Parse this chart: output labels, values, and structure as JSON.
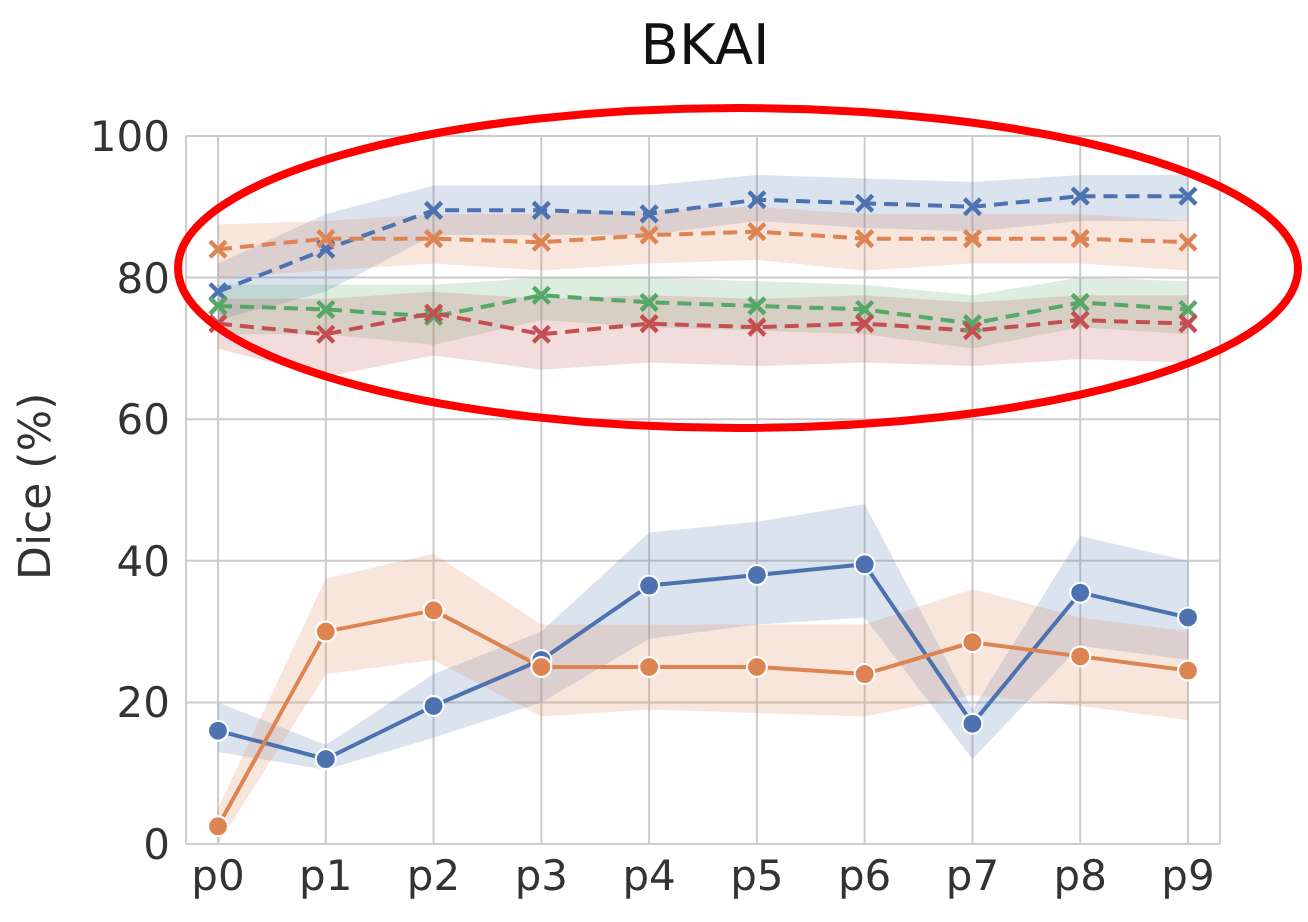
{
  "chart_data": {
    "type": "line",
    "title": "BKAI",
    "ylabel": "Dice (%)",
    "categories": [
      "p0",
      "p1",
      "p2",
      "p3",
      "p4",
      "p5",
      "p6",
      "p7",
      "p8",
      "p9"
    ],
    "ylim": [
      0,
      100
    ],
    "yticks": [
      0,
      20,
      40,
      60,
      80,
      100
    ],
    "grid": true,
    "legend": false,
    "series": [
      {
        "color": "#4c72b0",
        "marker": "circle",
        "line_style": "solid",
        "values": [
          16,
          12,
          19.5,
          26,
          36.5,
          38,
          39.5,
          17,
          35.5,
          32
        ],
        "lower": [
          13,
          10.5,
          15,
          20,
          29,
          31,
          32,
          12,
          28,
          26
        ],
        "upper": [
          20,
          14,
          24,
          30,
          44,
          45.5,
          48,
          19,
          43.5,
          40
        ]
      },
      {
        "color": "#dd8452",
        "marker": "circle",
        "line_style": "solid",
        "values": [
          2.5,
          30,
          33,
          25,
          25,
          25,
          24,
          28.5,
          26.5,
          24.5
        ],
        "lower": [
          0,
          24,
          26,
          18,
          19,
          18.5,
          18,
          21,
          19.5,
          17.5
        ],
        "upper": [
          5,
          37.5,
          41,
          31,
          31,
          31,
          31,
          36,
          32,
          30
        ]
      },
      {
        "color": "#4c72b0",
        "marker": "cross",
        "line_style": "dashed",
        "values": [
          78,
          84,
          89.5,
          89.5,
          89,
          91,
          90.5,
          90,
          91.5,
          91.5
        ],
        "lower": [
          74,
          78,
          86,
          86,
          86,
          88,
          87,
          86.5,
          88,
          88
        ],
        "upper": [
          82,
          89,
          93,
          93,
          93,
          94.5,
          94,
          93.5,
          94.5,
          94.5
        ]
      },
      {
        "color": "#dd8452",
        "marker": "cross",
        "line_style": "dashed",
        "values": [
          84,
          85.5,
          85.5,
          85,
          86,
          86.5,
          85.5,
          85.5,
          85.5,
          85
        ],
        "lower": [
          80,
          81,
          82,
          81,
          82,
          82.5,
          81,
          82,
          82,
          81
        ],
        "upper": [
          87.5,
          88,
          89,
          89,
          89.5,
          90,
          89,
          89,
          89,
          88
        ]
      },
      {
        "color": "#55a868",
        "marker": "cross",
        "line_style": "dashed",
        "values": [
          76,
          75.5,
          74.5,
          77.5,
          76.5,
          76,
          75.5,
          73.5,
          76.5,
          75.5
        ],
        "lower": [
          72,
          72,
          70.5,
          74,
          73,
          72.5,
          72,
          70,
          73,
          72
        ],
        "upper": [
          79,
          79,
          79,
          80,
          80,
          79.5,
          79,
          77.5,
          80,
          79.5
        ]
      },
      {
        "color": "#c44e52",
        "marker": "cross",
        "line_style": "dashed",
        "values": [
          73.5,
          72,
          75,
          72,
          73.5,
          73,
          73.5,
          72.5,
          74,
          73.5
        ],
        "lower": [
          70,
          66,
          69,
          67,
          68,
          67.5,
          68,
          67.5,
          68.5,
          68
        ],
        "upper": [
          77,
          77,
          78,
          77,
          77.5,
          77,
          77.5,
          76.5,
          77.5,
          77.5
        ]
      }
    ]
  }
}
